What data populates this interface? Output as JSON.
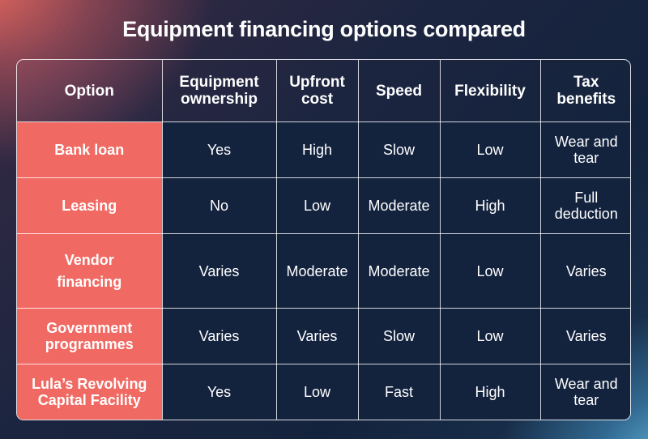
{
  "title": "Equipment financing options compared",
  "table": {
    "headers": [
      "Option",
      "Equipment ownership",
      "Upfront cost",
      "Speed",
      "Flexibility",
      "Tax benefits"
    ],
    "rows": [
      [
        "Bank loan",
        "Yes",
        "High",
        "Slow",
        "Low",
        "Wear and tear"
      ],
      [
        "Leasing",
        "No",
        "Low",
        "Moderate",
        "High",
        "Full deduction"
      ],
      [
        "Vendor financing",
        "Varies",
        "Moderate",
        "Moderate",
        "Low",
        "Varies"
      ],
      [
        "Government programmes",
        "Varies",
        "Varies",
        "Slow",
        "Low",
        "Varies"
      ],
      [
        "Lula’s Revolving Capital Facility",
        "Yes",
        "Low",
        "Fast",
        "High",
        "Wear and tear"
      ]
    ]
  },
  "colors": {
    "row_header_bg": "#f06a63",
    "cell_bg": "#13233e",
    "text": "#ffffff"
  }
}
